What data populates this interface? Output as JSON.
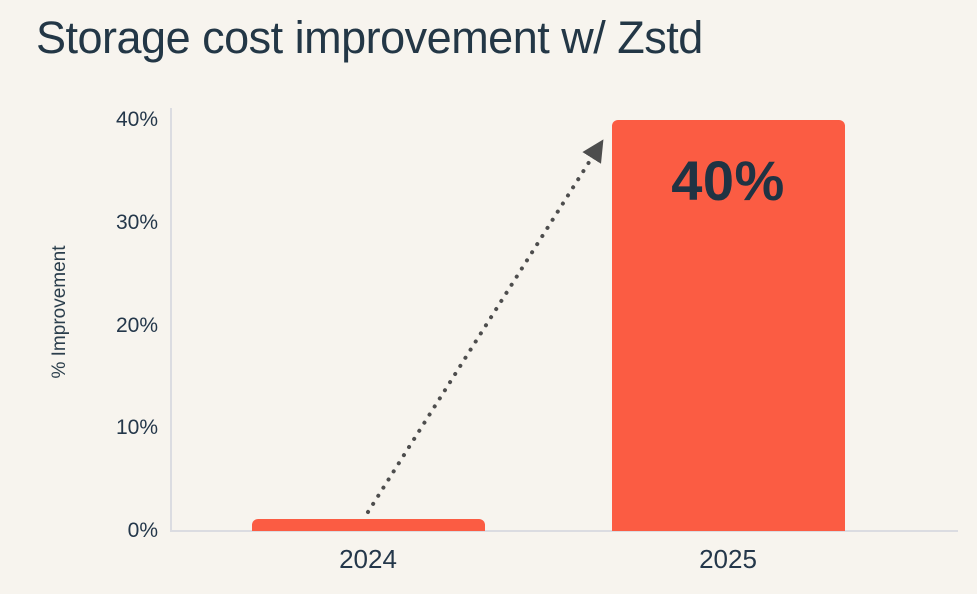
{
  "chart_data": {
    "type": "bar",
    "title": "Storage cost improvement w/ Zstd",
    "categories": [
      "2024",
      "2025"
    ],
    "values": [
      1,
      40
    ],
    "xlabel": "",
    "ylabel": "% Improvement",
    "ylim": [
      0,
      40
    ],
    "ytick_values": [
      0,
      10,
      20,
      30,
      40
    ],
    "ytick_labels": [
      "0%",
      "10%",
      "20%",
      "30%",
      "40%"
    ],
    "bar_color": "#FB5C43",
    "background_color": "#F7F4EE",
    "text_color": "#24374A",
    "axis_line_color": "#DBDCE1",
    "grid": false,
    "legend": false,
    "annotations": [
      {
        "text": "40%",
        "category": "2025",
        "position": "inside-top"
      }
    ],
    "arrow": {
      "style": "dotted",
      "color": "#4D4D4D",
      "from_category": "2024",
      "to_category": "2025",
      "meaning": "increase from 2024 to 2025"
    }
  }
}
